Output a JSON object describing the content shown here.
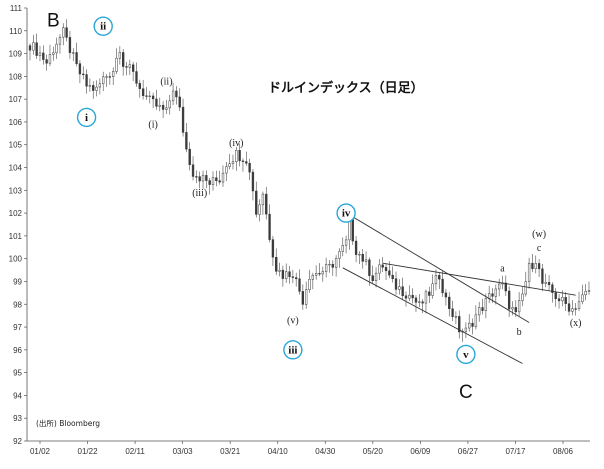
{
  "chart_data": {
    "type": "candlestick",
    "title": "ドルインデックス（日足）",
    "source": "(出所) Bloomberg",
    "ylim": [
      92,
      111
    ],
    "yticks": [
      "92",
      "93",
      "94",
      "95",
      "96",
      "97",
      "98",
      "99",
      "100",
      "101",
      "102",
      "103",
      "104",
      "105",
      "106",
      "107",
      "108",
      "109",
      "110",
      "111"
    ],
    "xticks": [
      "01/02",
      "01/22",
      "02/11",
      "03/03",
      "03/21",
      "04/10",
      "04/30",
      "05/20",
      "06/09",
      "06/27",
      "07/17",
      "08/06"
    ],
    "close_path": [
      [
        0,
        109.4
      ],
      [
        3,
        109.0
      ],
      [
        5,
        108.6
      ],
      [
        8,
        109.5
      ],
      [
        10,
        109.9
      ],
      [
        12,
        109.2
      ],
      [
        14,
        108.4
      ],
      [
        17,
        107.6
      ],
      [
        20,
        107.4
      ],
      [
        22,
        107.9
      ],
      [
        25,
        108.3
      ],
      [
        27,
        109.3
      ],
      [
        28,
        108.6
      ],
      [
        31,
        108.1
      ],
      [
        33,
        107.5
      ],
      [
        36,
        106.9
      ],
      [
        38,
        106.7
      ],
      [
        41,
        106.4
      ],
      [
        43,
        107.5
      ],
      [
        45,
        106.5
      ],
      [
        47,
        104.8
      ],
      [
        49,
        103.8
      ],
      [
        51,
        103.6
      ],
      [
        54,
        103.3
      ],
      [
        57,
        103.5
      ],
      [
        59,
        104.2
      ],
      [
        62,
        104.6
      ],
      [
        65,
        104.4
      ],
      [
        67,
        103.1
      ],
      [
        68,
        102.0
      ],
      [
        70,
        102.9
      ],
      [
        72,
        101.0
      ],
      [
        74,
        99.6
      ],
      [
        76,
        99.3
      ],
      [
        79,
        99.4
      ],
      [
        82,
        98.2
      ],
      [
        84,
        99.3
      ],
      [
        87,
        99.4
      ],
      [
        90,
        99.6
      ],
      [
        93,
        100.2
      ],
      [
        95,
        100.7
      ],
      [
        96,
        101.5
      ],
      [
        98,
        100.4
      ],
      [
        100,
        100.0
      ],
      [
        103,
        99.2
      ],
      [
        106,
        99.7
      ],
      [
        109,
        98.9
      ],
      [
        112,
        98.6
      ],
      [
        115,
        98.3
      ],
      [
        117,
        97.9
      ],
      [
        120,
        98.5
      ],
      [
        123,
        99.3
      ],
      [
        125,
        98.2
      ],
      [
        127,
        97.6
      ],
      [
        129,
        96.9
      ],
      [
        131,
        96.8
      ],
      [
        134,
        97.5
      ],
      [
        137,
        98.1
      ],
      [
        140,
        98.7
      ],
      [
        142,
        98.8
      ],
      [
        144,
        98.0
      ],
      [
        146,
        97.5
      ],
      [
        148,
        98.4
      ],
      [
        150,
        99.6
      ],
      [
        152,
        100.0
      ],
      [
        154,
        98.9
      ],
      [
        157,
        98.5
      ],
      [
        160,
        98.1
      ],
      [
        163,
        97.8
      ],
      [
        166,
        98.3
      ],
      [
        168,
        98.6
      ]
    ],
    "trendlines": [
      {
        "from": [
          94,
          102.1
        ],
        "to": [
          150,
          97.2
        ]
      },
      {
        "from": [
          94,
          99.6
        ],
        "to": [
          148,
          95.4
        ]
      },
      {
        "from": [
          106,
          99.8
        ],
        "to": [
          164,
          98.4
        ]
      }
    ],
    "annotations": [
      {
        "label": "B",
        "style": "large",
        "x": 7,
        "y": 110.5
      },
      {
        "label": "ii",
        "style": "circled",
        "x": 22,
        "y": 110.2
      },
      {
        "label": "i",
        "style": "circled",
        "x": 17,
        "y": 106.2
      },
      {
        "label": "(ii)",
        "style": "paren",
        "x": 41,
        "y": 107.8
      },
      {
        "label": "(i)",
        "style": "paren",
        "x": 37,
        "y": 105.9
      },
      {
        "label": "(iv)",
        "style": "paren",
        "x": 62,
        "y": 105.1
      },
      {
        "label": "(iii)",
        "style": "paren",
        "x": 51,
        "y": 102.9
      },
      {
        "label": "iv",
        "style": "circled",
        "x": 95,
        "y": 102.0
      },
      {
        "label": "(v)",
        "style": "paren",
        "x": 79,
        "y": 97.3
      },
      {
        "label": "iii",
        "style": "circled",
        "x": 79,
        "y": 96.0
      },
      {
        "label": "v",
        "style": "circled",
        "x": 131,
        "y": 95.8
      },
      {
        "label": "C",
        "style": "large",
        "x": 131,
        "y": 94.2
      },
      {
        "label": "a",
        "style": "small",
        "x": 142,
        "y": 99.6
      },
      {
        "label": "b",
        "style": "small",
        "x": 147,
        "y": 96.8
      },
      {
        "label": "(w)",
        "style": "paren",
        "x": 153,
        "y": 101.1
      },
      {
        "label": "c",
        "style": "small",
        "x": 153,
        "y": 100.5
      },
      {
        "label": "(x)",
        "style": "paren",
        "x": 164,
        "y": 97.2
      }
    ]
  }
}
